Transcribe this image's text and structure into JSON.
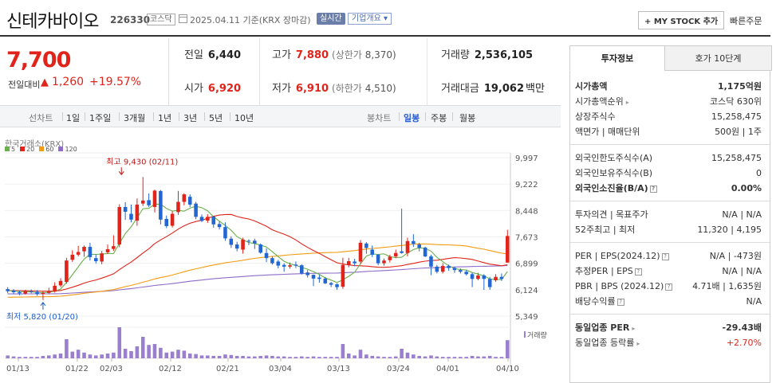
{
  "header": {
    "stock_name": "신테카바이오",
    "stock_code": "226330",
    "market": "코스닥",
    "date_text": "2025.04.11 기준(KRX 장마감)",
    "realtime_badge": "실시간",
    "overview_button": "기업개요 ▾",
    "mystock_button": "+ MY STOCK 추가",
    "quick_order": "빠른주문"
  },
  "price": {
    "current": "7,700",
    "change_label": "전일대비",
    "change_arrow": "▲",
    "change_value": "1,260",
    "change_pct": "+19.57%"
  },
  "stats": {
    "prev_label": "전일",
    "prev_value": "6,440",
    "high_label": "고가",
    "high_value": "7,880",
    "upper_limit_label": "(상한가",
    "upper_limit_value": "8,370)",
    "volume_label": "거래량",
    "volume_value": "2,536,105",
    "open_label": "시가",
    "open_value": "6,920",
    "low_label": "저가",
    "low_value": "6,910",
    "lower_limit_label": "(하한가",
    "lower_limit_value": "4,510)",
    "amount_label": "거래대금",
    "amount_value": "19,062",
    "amount_unit": "백만"
  },
  "toolbar": {
    "line_chart": "선차트",
    "periods": [
      "1일",
      "1주일",
      "3개월",
      "1년",
      "3년",
      "5년",
      "10년"
    ],
    "candle_chart": "봉차트",
    "candle_periods": [
      "일봉",
      "주봉",
      "월봉"
    ],
    "active_candle": "일봉"
  },
  "chart_data": {
    "type": "candlestick",
    "source": "한국거래소(KRX)",
    "legend": [
      {
        "name": "5",
        "color": "#6ab04c"
      },
      {
        "name": "20",
        "color": "#e0241b"
      },
      {
        "name": "60",
        "color": "#f39c12"
      },
      {
        "name": "120",
        "color": "#8e6cc9"
      }
    ],
    "y_ticks": [
      "9,997",
      "9,222",
      "8,448",
      "7,673",
      "6,899",
      "6,124",
      "5,349"
    ],
    "ylim": [
      5349,
      9997
    ],
    "x_ticks": [
      "01/13",
      "01/22",
      "02/03",
      "02/12",
      "02/21",
      "03/04",
      "03/13",
      "03/24",
      "04/01",
      "04/10"
    ],
    "max_label": "최고 9,430 (02/11)",
    "min_label": "최저 5,820 (01/20)",
    "volume_label": "거래량",
    "candles": [
      {
        "o": 6140,
        "c": 6080,
        "h": 6200,
        "l": 6020,
        "v": 6
      },
      {
        "o": 6100,
        "c": 6050,
        "h": 6140,
        "l": 6000,
        "v": 4
      },
      {
        "o": 6050,
        "c": 6020,
        "h": 6100,
        "l": 5960,
        "v": 3
      },
      {
        "o": 6010,
        "c": 6080,
        "h": 6120,
        "l": 5980,
        "v": 3
      },
      {
        "o": 6080,
        "c": 6060,
        "h": 6130,
        "l": 6020,
        "v": 3
      },
      {
        "o": 6060,
        "c": 6000,
        "h": 6110,
        "l": 5950,
        "v": 3
      },
      {
        "o": 6000,
        "c": 6030,
        "h": 6070,
        "l": 5820,
        "v": 5
      },
      {
        "o": 6030,
        "c": 6070,
        "h": 6180,
        "l": 5990,
        "v": 6
      },
      {
        "o": 6070,
        "c": 6240,
        "h": 6340,
        "l": 6040,
        "v": 8
      },
      {
        "o": 6250,
        "c": 6380,
        "h": 6460,
        "l": 6200,
        "v": 10
      },
      {
        "o": 6350,
        "c": 6980,
        "h": 7060,
        "l": 6300,
        "v": 40
      },
      {
        "o": 7000,
        "c": 7150,
        "h": 7280,
        "l": 6940,
        "v": 14
      },
      {
        "o": 7150,
        "c": 7230,
        "h": 7410,
        "l": 7100,
        "v": 18
      },
      {
        "o": 7250,
        "c": 7380,
        "h": 7420,
        "l": 7090,
        "v": 12
      },
      {
        "o": 7380,
        "c": 7080,
        "h": 7500,
        "l": 6980,
        "v": 8
      },
      {
        "o": 7050,
        "c": 6960,
        "h": 7160,
        "l": 6890,
        "v": 6
      },
      {
        "o": 6950,
        "c": 7190,
        "h": 7260,
        "l": 6870,
        "v": 8
      },
      {
        "o": 7220,
        "c": 7310,
        "h": 7450,
        "l": 7170,
        "v": 10
      },
      {
        "o": 7320,
        "c": 7400,
        "h": 7720,
        "l": 7260,
        "v": 12
      },
      {
        "o": 7450,
        "c": 8550,
        "h": 8630,
        "l": 7370,
        "v": 65
      },
      {
        "o": 8550,
        "c": 8410,
        "h": 8690,
        "l": 8170,
        "v": 20
      },
      {
        "o": 8350,
        "c": 8180,
        "h": 8620,
        "l": 8100,
        "v": 15
      },
      {
        "o": 8150,
        "c": 8620,
        "h": 8800,
        "l": 8000,
        "v": 25
      },
      {
        "o": 8650,
        "c": 8740,
        "h": 9430,
        "l": 8580,
        "v": 45
      },
      {
        "o": 8750,
        "c": 8600,
        "h": 8950,
        "l": 8550,
        "v": 28
      },
      {
        "o": 8550,
        "c": 9030,
        "h": 9060,
        "l": 8390,
        "v": 30
      },
      {
        "o": 9020,
        "c": 8180,
        "h": 9050,
        "l": 8040,
        "v": 22
      },
      {
        "o": 8200,
        "c": 7990,
        "h": 8300,
        "l": 7930,
        "v": 12
      },
      {
        "o": 8000,
        "c": 8350,
        "h": 8420,
        "l": 7950,
        "v": 14
      },
      {
        "o": 8400,
        "c": 8700,
        "h": 9020,
        "l": 8320,
        "v": 18
      },
      {
        "o": 8700,
        "c": 8920,
        "h": 8950,
        "l": 8600,
        "v": 16
      },
      {
        "o": 8850,
        "c": 8620,
        "h": 8920,
        "l": 8550,
        "v": 10
      },
      {
        "o": 8650,
        "c": 8260,
        "h": 8700,
        "l": 8190,
        "v": 9
      },
      {
        "o": 8260,
        "c": 8140,
        "h": 8330,
        "l": 8110,
        "v": 6
      },
      {
        "o": 8150,
        "c": 8260,
        "h": 8340,
        "l": 8080,
        "v": 6
      },
      {
        "o": 8270,
        "c": 8040,
        "h": 8290,
        "l": 7940,
        "v": 5
      },
      {
        "o": 8050,
        "c": 7960,
        "h": 8130,
        "l": 7890,
        "v": 5
      },
      {
        "o": 7960,
        "c": 7630,
        "h": 8100,
        "l": 7560,
        "v": 8
      },
      {
        "o": 7620,
        "c": 7440,
        "h": 7690,
        "l": 7350,
        "v": 7
      },
      {
        "o": 7450,
        "c": 7330,
        "h": 7530,
        "l": 7250,
        "v": 5
      },
      {
        "o": 7300,
        "c": 7590,
        "h": 7650,
        "l": 7180,
        "v": 5
      },
      {
        "o": 7560,
        "c": 7550,
        "h": 7600,
        "l": 7430,
        "v": 4
      },
      {
        "o": 7560,
        "c": 7480,
        "h": 7620,
        "l": 7320,
        "v": 4
      },
      {
        "o": 7450,
        "c": 7210,
        "h": 7480,
        "l": 7180,
        "v": 5
      },
      {
        "o": 7200,
        "c": 7050,
        "h": 7340,
        "l": 6930,
        "v": 6
      },
      {
        "o": 7050,
        "c": 6900,
        "h": 7100,
        "l": 6860,
        "v": 5
      },
      {
        "o": 6950,
        "c": 6830,
        "h": 7000,
        "l": 6750,
        "v": 4
      },
      {
        "o": 6850,
        "c": 6800,
        "h": 6900,
        "l": 6650,
        "v": 4
      },
      {
        "o": 6800,
        "c": 6840,
        "h": 6920,
        "l": 6740,
        "v": 3
      },
      {
        "o": 6860,
        "c": 6830,
        "h": 6950,
        "l": 6760,
        "v": 3
      },
      {
        "o": 6840,
        "c": 6600,
        "h": 6870,
        "l": 6570,
        "v": 4
      },
      {
        "o": 6630,
        "c": 6550,
        "h": 6700,
        "l": 6480,
        "v": 3
      },
      {
        "o": 6560,
        "c": 6450,
        "h": 6570,
        "l": 6230,
        "v": 4
      },
      {
        "o": 6480,
        "c": 6440,
        "h": 6560,
        "l": 6330,
        "v": 3
      },
      {
        "o": 6450,
        "c": 6310,
        "h": 6500,
        "l": 6290,
        "v": 3
      },
      {
        "o": 6320,
        "c": 6270,
        "h": 6350,
        "l": 6200,
        "v": 3
      },
      {
        "o": 6280,
        "c": 6200,
        "h": 6310,
        "l": 6120,
        "v": 3
      },
      {
        "o": 6210,
        "c": 6850,
        "h": 7060,
        "l": 6150,
        "v": 30
      },
      {
        "o": 6850,
        "c": 6960,
        "h": 7060,
        "l": 6780,
        "v": 10
      },
      {
        "o": 6950,
        "c": 6900,
        "h": 7030,
        "l": 6810,
        "v": 6
      },
      {
        "o": 6950,
        "c": 7500,
        "h": 7580,
        "l": 6880,
        "v": 18
      },
      {
        "o": 7480,
        "c": 7350,
        "h": 7520,
        "l": 7180,
        "v": 8
      },
      {
        "o": 7300,
        "c": 7150,
        "h": 7420,
        "l": 7080,
        "v": 5
      },
      {
        "o": 7150,
        "c": 6900,
        "h": 7170,
        "l": 6840,
        "v": 4
      },
      {
        "o": 6900,
        "c": 6980,
        "h": 7040,
        "l": 6830,
        "v": 3
      },
      {
        "o": 6990,
        "c": 7090,
        "h": 7150,
        "l": 6920,
        "v": 3
      },
      {
        "o": 7100,
        "c": 7200,
        "h": 7300,
        "l": 7050,
        "v": 4
      },
      {
        "o": 7250,
        "c": 7200,
        "h": 8500,
        "l": 7180,
        "v": 20
      },
      {
        "o": 7200,
        "c": 7550,
        "h": 7650,
        "l": 7100,
        "v": 12
      },
      {
        "o": 7550,
        "c": 7470,
        "h": 7750,
        "l": 7380,
        "v": 8
      },
      {
        "o": 7450,
        "c": 7350,
        "h": 7500,
        "l": 7250,
        "v": 5
      },
      {
        "o": 7360,
        "c": 7100,
        "h": 7380,
        "l": 7080,
        "v": 4
      },
      {
        "o": 7100,
        "c": 6800,
        "h": 7150,
        "l": 6550,
        "v": 6
      },
      {
        "o": 6800,
        "c": 6650,
        "h": 6850,
        "l": 6600,
        "v": 4
      },
      {
        "o": 6650,
        "c": 6820,
        "h": 6900,
        "l": 6600,
        "v": 3
      },
      {
        "o": 6820,
        "c": 6760,
        "h": 6860,
        "l": 6680,
        "v": 3
      },
      {
        "o": 6760,
        "c": 6700,
        "h": 6800,
        "l": 6620,
        "v": 3
      },
      {
        "o": 6700,
        "c": 6650,
        "h": 6750,
        "l": 6600,
        "v": 3
      },
      {
        "o": 6650,
        "c": 6580,
        "h": 6700,
        "l": 6540,
        "v": 3
      },
      {
        "o": 6580,
        "c": 6440,
        "h": 6620,
        "l": 6200,
        "v": 5
      },
      {
        "o": 6440,
        "c": 6540,
        "h": 6620,
        "l": 6400,
        "v": 4
      },
      {
        "o": 6540,
        "c": 6440,
        "h": 6580,
        "l": 6120,
        "v": 4
      },
      {
        "o": 6440,
        "c": 6200,
        "h": 6500,
        "l": 6120,
        "v": 5
      },
      {
        "o": 6400,
        "c": 6500,
        "h": 6580,
        "l": 6350,
        "v": 3
      },
      {
        "o": 6500,
        "c": 6440,
        "h": 6600,
        "l": 6380,
        "v": 3
      },
      {
        "o": 6920,
        "c": 7700,
        "h": 7880,
        "l": 6910,
        "v": 38
      }
    ]
  },
  "right_panel": {
    "tab_active": "투자정보",
    "tab_other": "호가 10단계",
    "rows1": [
      {
        "label": "시가총액",
        "value": "1,175억원",
        "bold": true
      },
      {
        "label": "시가총액순위",
        "value": "코스닥 630위",
        "caret": true
      },
      {
        "label": "상장주식수",
        "value": "15,258,475"
      },
      {
        "label": "액면가 | 매매단위",
        "value": "500원 | 1주"
      }
    ],
    "rows2": [
      {
        "label": "외국인한도주식수(A)",
        "value": "15,258,475"
      },
      {
        "label": "외국인보유주식수(B)",
        "value": "0"
      },
      {
        "label": "외국인소진율(B/A)",
        "value": "0.00%",
        "bold": true,
        "help": true
      }
    ],
    "rows3": [
      {
        "label": "투자의견 | 목표주가",
        "value": "N/A | N/A"
      },
      {
        "label": "52주최고 | 최저",
        "value": "11,320 | 4,195"
      }
    ],
    "rows4": [
      {
        "label": "PER | EPS(2024.12)",
        "value": "N/A | -473원",
        "help": true
      },
      {
        "label": "추정PER | EPS",
        "value": "N/A | N/A",
        "help": true
      },
      {
        "label": "PBR | BPS (2024.12)",
        "value": "4.71배 | 1,635원",
        "help": true
      },
      {
        "label": "배당수익률",
        "value": "N/A",
        "help": true
      }
    ],
    "rows5": [
      {
        "label": "동일업종 PER",
        "value": "-29.43배",
        "bold": true,
        "caret": true
      },
      {
        "label": "동일업종 등락률",
        "value": "+2.70%",
        "red": true,
        "caret": true
      }
    ]
  }
}
